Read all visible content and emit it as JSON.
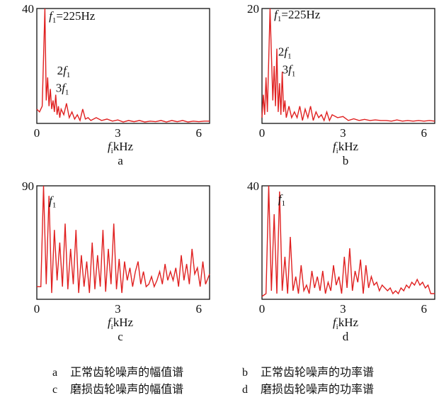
{
  "chart_data": [
    {
      "type": "line",
      "panel_label": "a",
      "xlabel": {
        "var": "f",
        "sub": "i",
        "unit": "kHz"
      },
      "x_ticks": [
        "0",
        "3",
        "6"
      ],
      "y_max_label": "40",
      "xlim": [
        0,
        6.4
      ],
      "ylim": [
        0,
        40
      ],
      "annotations": [
        {
          "var": "f",
          "sub": "1",
          "text": "=225Hz",
          "x": 0.45,
          "y": 36
        },
        {
          "pre": "2",
          "var": "f",
          "sub": "1",
          "text": "",
          "x": 0.75,
          "y": 17
        },
        {
          "pre": "3",
          "var": "f",
          "sub": "1",
          "text": "",
          "x": 0.7,
          "y": 11
        }
      ],
      "series": [
        {
          "color": "#e02020",
          "x": [
            0.0,
            0.1,
            0.2,
            0.3,
            0.35,
            0.4,
            0.45,
            0.5,
            0.55,
            0.6,
            0.65,
            0.7,
            0.75,
            0.8,
            0.85,
            0.9,
            1.0,
            1.1,
            1.2,
            1.3,
            1.4,
            1.5,
            1.6,
            1.7,
            1.8,
            1.9,
            2.0,
            2.2,
            2.4,
            2.6,
            2.8,
            3.0,
            3.2,
            3.4,
            3.6,
            3.8,
            4.0,
            4.2,
            4.4,
            4.6,
            4.8,
            5.0,
            5.2,
            5.4,
            5.6,
            5.8,
            6.0,
            6.2,
            6.4
          ],
          "values": [
            5,
            4,
            6,
            40,
            8,
            16,
            6,
            12,
            5,
            8,
            4,
            10,
            3,
            6,
            2,
            5,
            3,
            7,
            2,
            4,
            1.5,
            3,
            1,
            5,
            1.5,
            2,
            1,
            2,
            1,
            1.5,
            0.8,
            1.2,
            0.5,
            1,
            0.6,
            1,
            0.5,
            0.8,
            0.6,
            1,
            0.5,
            1,
            0.6,
            1,
            0.5,
            0.8,
            0.6,
            0.8,
            0.8
          ]
        }
      ]
    },
    {
      "type": "line",
      "panel_label": "b",
      "xlabel": {
        "var": "f",
        "sub": "i",
        "unit": "kHz"
      },
      "x_ticks": [
        "0",
        "3",
        "6"
      ],
      "y_max_label": "20",
      "xlim": [
        0,
        6.4
      ],
      "ylim": [
        0,
        20
      ],
      "annotations": [
        {
          "var": "f",
          "sub": "1",
          "text": "=225Hz",
          "x": 0.45,
          "y": 18.3
        },
        {
          "pre": "2",
          "var": "f",
          "sub": "1",
          "text": "",
          "x": 0.6,
          "y": 11.8
        },
        {
          "pre": "3",
          "var": "f",
          "sub": "1",
          "text": "",
          "x": 0.75,
          "y": 8.7
        }
      ],
      "series": [
        {
          "color": "#e02020",
          "x": [
            0.0,
            0.05,
            0.1,
            0.15,
            0.2,
            0.3,
            0.35,
            0.4,
            0.45,
            0.5,
            0.55,
            0.6,
            0.65,
            0.7,
            0.75,
            0.8,
            0.85,
            0.9,
            1.0,
            1.1,
            1.2,
            1.3,
            1.4,
            1.5,
            1.6,
            1.7,
            1.8,
            1.9,
            2.0,
            2.1,
            2.2,
            2.3,
            2.4,
            2.5,
            2.6,
            2.8,
            3.0,
            3.2,
            3.4,
            3.6,
            3.8,
            4.0,
            4.2,
            4.4,
            4.6,
            4.8,
            5.0,
            5.2,
            5.4,
            5.6,
            5.8,
            6.0,
            6.2,
            6.4
          ],
          "values": [
            1,
            5,
            1.5,
            8,
            2,
            20,
            12,
            4,
            10,
            3,
            13,
            2,
            7,
            1.5,
            9,
            2,
            4,
            1,
            3,
            1,
            2,
            1,
            3,
            0.5,
            2.5,
            1,
            3,
            0.5,
            2,
            1,
            1.5,
            0.5,
            2,
            0.5,
            1.5,
            1,
            1.2,
            0.5,
            0.8,
            0.5,
            0.7,
            0.5,
            0.6,
            0.5,
            0.5,
            0.4,
            0.6,
            0.4,
            0.5,
            0.4,
            0.5,
            0.4,
            0.5,
            0.4
          ]
        }
      ]
    },
    {
      "type": "line",
      "panel_label": "c",
      "xlabel": {
        "var": "f",
        "sub": "i",
        "unit": "kHz"
      },
      "x_ticks": [
        "0",
        "3",
        "6"
      ],
      "y_max_label": "90",
      "xlim": [
        0,
        6.4
      ],
      "ylim": [
        0,
        90
      ],
      "annotations": [
        {
          "var": "f",
          "sub": "1",
          "text": "",
          "x": 0.45,
          "y": 75
        }
      ],
      "series": [
        {
          "color": "#e02020",
          "x": [
            0.0,
            0.15,
            0.25,
            0.35,
            0.45,
            0.55,
            0.65,
            0.75,
            0.85,
            0.95,
            1.05,
            1.15,
            1.25,
            1.35,
            1.45,
            1.55,
            1.65,
            1.75,
            1.85,
            1.95,
            2.05,
            2.15,
            2.25,
            2.35,
            2.45,
            2.55,
            2.65,
            2.75,
            2.85,
            2.95,
            3.05,
            3.15,
            3.25,
            3.35,
            3.45,
            3.55,
            3.65,
            3.75,
            3.85,
            3.95,
            4.05,
            4.15,
            4.25,
            4.35,
            4.45,
            4.55,
            4.65,
            4.75,
            4.85,
            4.95,
            5.05,
            5.15,
            5.25,
            5.35,
            5.45,
            5.55,
            5.65,
            5.75,
            5.85,
            5.95,
            6.05,
            6.15,
            6.25,
            6.4
          ],
          "values": [
            10,
            10,
            90,
            12,
            82,
            5,
            55,
            15,
            45,
            10,
            60,
            8,
            40,
            12,
            55,
            5,
            35,
            10,
            30,
            5,
            45,
            8,
            35,
            10,
            55,
            6,
            40,
            12,
            60,
            8,
            32,
            5,
            30,
            15,
            25,
            10,
            22,
            30,
            12,
            22,
            10,
            12,
            18,
            10,
            15,
            22,
            12,
            28,
            15,
            22,
            15,
            25,
            10,
            35,
            15,
            28,
            12,
            40,
            20,
            25,
            10,
            30,
            12,
            20
          ]
        }
      ]
    },
    {
      "type": "line",
      "panel_label": "d",
      "xlabel": {
        "var": "f",
        "sub": "i",
        "unit": "kHz"
      },
      "x_ticks": [
        "0",
        "3",
        "6"
      ],
      "y_max_label": "40",
      "xlim": [
        0,
        6.4
      ],
      "ylim": [
        0,
        40
      ],
      "annotations": [
        {
          "var": "f",
          "sub": "1",
          "text": "",
          "x": 0.6,
          "y": 34
        }
      ],
      "series": [
        {
          "color": "#e02020",
          "x": [
            0.0,
            0.15,
            0.25,
            0.35,
            0.45,
            0.55,
            0.65,
            0.75,
            0.85,
            0.95,
            1.05,
            1.15,
            1.25,
            1.35,
            1.45,
            1.55,
            1.65,
            1.75,
            1.85,
            1.95,
            2.05,
            2.15,
            2.25,
            2.35,
            2.45,
            2.55,
            2.65,
            2.75,
            2.85,
            2.95,
            3.05,
            3.15,
            3.25,
            3.35,
            3.45,
            3.55,
            3.65,
            3.75,
            3.85,
            3.95,
            4.05,
            4.15,
            4.25,
            4.35,
            4.45,
            4.55,
            4.65,
            4.75,
            4.85,
            4.95,
            5.05,
            5.15,
            5.25,
            5.35,
            5.45,
            5.55,
            5.65,
            5.75,
            5.85,
            5.95,
            6.05,
            6.15,
            6.25,
            6.4
          ],
          "values": [
            1,
            2,
            40,
            3,
            30,
            2,
            38,
            3,
            15,
            2,
            22,
            3,
            8,
            2,
            12,
            3,
            5,
            2,
            10,
            4,
            8,
            3,
            10,
            2,
            6,
            3,
            12,
            5,
            8,
            2,
            15,
            4,
            18,
            3,
            10,
            6,
            14,
            2,
            12,
            4,
            8,
            5,
            6,
            3,
            5,
            4,
            3,
            4,
            2,
            3,
            2,
            4,
            3,
            5,
            4,
            6,
            5,
            7,
            5,
            6,
            4,
            5,
            2,
            2
          ]
        }
      ]
    }
  ],
  "captions": [
    {
      "letter": "a",
      "text": "正常齿轮噪声的幅值谱"
    },
    {
      "letter": "b",
      "text": "正常齿轮噪声的功率谱"
    },
    {
      "letter": "c",
      "text": "磨损齿轮噪声的幅值谱"
    },
    {
      "letter": "d",
      "text": "磨损齿轮噪声的功率谱"
    }
  ]
}
